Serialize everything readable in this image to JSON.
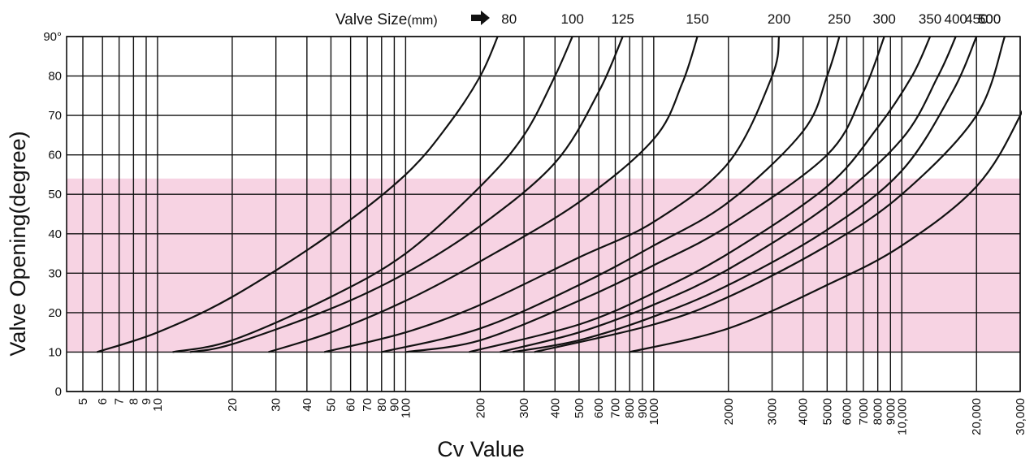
{
  "chart_data": {
    "type": "line",
    "title": "Valve  Size",
    "title_unit": "(mm)",
    "xlabel": "Cv  Value",
    "ylabel": "Valve  Opening(degree)",
    "x_scale": "log",
    "xlim": [
      4.3,
      30000
    ],
    "ylim": [
      0,
      90
    ],
    "y_ticks": [
      "0",
      "10",
      "20",
      "30",
      "40",
      "50",
      "60",
      "70",
      "80",
      "90°"
    ],
    "y_tick_values": [
      0,
      10,
      20,
      30,
      40,
      50,
      60,
      70,
      80,
      90
    ],
    "x_ticks": [
      {
        "v": 5,
        "label": "5"
      },
      {
        "v": 6,
        "label": "6"
      },
      {
        "v": 7,
        "label": "7"
      },
      {
        "v": 8,
        "label": "8"
      },
      {
        "v": 9,
        "label": "9"
      },
      {
        "v": 10,
        "label": "10"
      },
      {
        "v": 20,
        "label": "20"
      },
      {
        "v": 30,
        "label": "30"
      },
      {
        "v": 40,
        "label": "40"
      },
      {
        "v": 50,
        "label": "50"
      },
      {
        "v": 60,
        "label": "60"
      },
      {
        "v": 70,
        "label": "70"
      },
      {
        "v": 80,
        "label": "80"
      },
      {
        "v": 90,
        "label": "90"
      },
      {
        "v": 100,
        "label": "100"
      },
      {
        "v": 200,
        "label": "200"
      },
      {
        "v": 300,
        "label": "300"
      },
      {
        "v": 400,
        "label": "400"
      },
      {
        "v": 500,
        "label": "500"
      },
      {
        "v": 600,
        "label": "600"
      },
      {
        "v": 700,
        "label": "700"
      },
      {
        "v": 800,
        "label": "800"
      },
      {
        "v": 900,
        "label": "900"
      },
      {
        "v": 1000,
        "label": "1000"
      },
      {
        "v": 2000,
        "label": "2000"
      },
      {
        "v": 3000,
        "label": "3000"
      },
      {
        "v": 4000,
        "label": "4000"
      },
      {
        "v": 5000,
        "label": "5000"
      },
      {
        "v": 6000,
        "label": "6000"
      },
      {
        "v": 7000,
        "label": "7000"
      },
      {
        "v": 8000,
        "label": "8000"
      },
      {
        "v": 9000,
        "label": "9000"
      },
      {
        "v": 10000,
        "label": "10,000"
      },
      {
        "v": 20000,
        "label": "20,000"
      },
      {
        "v": 30000,
        "label": "30,000"
      }
    ],
    "highlight_band": {
      "y_from": 10,
      "y_to": 54,
      "color": "#f7d3e3"
    },
    "grid": true,
    "line_color": "#111111",
    "series": [
      {
        "name": "80",
        "points": [
          [
            5.7,
            10
          ],
          [
            10,
            15
          ],
          [
            20,
            24
          ],
          [
            50,
            40
          ],
          [
            100,
            55
          ],
          [
            150,
            68
          ],
          [
            200,
            80
          ],
          [
            235,
            90
          ]
        ]
      },
      {
        "name": "100",
        "points": [
          [
            11.5,
            10
          ],
          [
            20,
            13
          ],
          [
            50,
            24
          ],
          [
            100,
            35
          ],
          [
            200,
            52
          ],
          [
            300,
            65
          ],
          [
            400,
            80
          ],
          [
            470,
            90
          ]
        ]
      },
      {
        "name": "125",
        "points": [
          [
            13.5,
            10
          ],
          [
            20,
            12
          ],
          [
            50,
            21
          ],
          [
            100,
            30
          ],
          [
            200,
            42
          ],
          [
            400,
            58
          ],
          [
            600,
            76
          ],
          [
            750,
            90
          ]
        ]
      },
      {
        "name": "150",
        "points": [
          [
            28,
            10
          ],
          [
            50,
            15
          ],
          [
            100,
            23
          ],
          [
            200,
            33
          ],
          [
            500,
            48
          ],
          [
            1000,
            64
          ],
          [
            1300,
            78
          ],
          [
            1500,
            90
          ]
        ]
      },
      {
        "name": "200",
        "points": [
          [
            47,
            10
          ],
          [
            100,
            15
          ],
          [
            200,
            22
          ],
          [
            500,
            34
          ],
          [
            1000,
            43
          ],
          [
            2000,
            58
          ],
          [
            3000,
            80
          ],
          [
            3200,
            90
          ]
        ]
      },
      {
        "name": "250",
        "points": [
          [
            80,
            10
          ],
          [
            200,
            16
          ],
          [
            500,
            27
          ],
          [
            1000,
            37
          ],
          [
            2000,
            48
          ],
          [
            4000,
            66
          ],
          [
            5000,
            80
          ],
          [
            5600,
            90
          ]
        ]
      },
      {
        "name": "300",
        "points": [
          [
            100,
            10
          ],
          [
            200,
            13
          ],
          [
            500,
            23
          ],
          [
            1000,
            32
          ],
          [
            2000,
            42
          ],
          [
            5000,
            60
          ],
          [
            7000,
            76
          ],
          [
            8500,
            90
          ]
        ]
      },
      {
        "name": "350",
        "points": [
          [
            180,
            10
          ],
          [
            500,
            17
          ],
          [
            1000,
            25
          ],
          [
            2000,
            35
          ],
          [
            5000,
            52
          ],
          [
            8000,
            67
          ],
          [
            11000,
            80
          ],
          [
            13000,
            90
          ]
        ]
      },
      {
        "name": "400",
        "points": [
          [
            240,
            10
          ],
          [
            500,
            15
          ],
          [
            1000,
            22
          ],
          [
            2000,
            31
          ],
          [
            5000,
            47
          ],
          [
            10000,
            64
          ],
          [
            14000,
            80
          ],
          [
            16500,
            90
          ]
        ]
      },
      {
        "name": "450",
        "points": [
          [
            270,
            10
          ],
          [
            500,
            13
          ],
          [
            1000,
            19
          ],
          [
            2000,
            27
          ],
          [
            5000,
            41
          ],
          [
            10000,
            56
          ],
          [
            16000,
            76
          ],
          [
            20000,
            90
          ]
        ]
      },
      {
        "name": "500",
        "points": [
          [
            330,
            10
          ],
          [
            1000,
            17
          ],
          [
            2000,
            24
          ],
          [
            5000,
            37
          ],
          [
            10000,
            50
          ],
          [
            20000,
            70
          ],
          [
            26000,
            90
          ]
        ]
      },
      {
        "name": "600",
        "points": [
          [
            800,
            10
          ],
          [
            2000,
            16
          ],
          [
            5000,
            27
          ],
          [
            10000,
            37
          ],
          [
            20000,
            52
          ],
          [
            30000,
            70
          ],
          [
            40000,
            90
          ]
        ]
      }
    ],
    "size_labels": [
      "80",
      "100",
      "125",
      "150",
      "200",
      "250",
      "300",
      "350",
      "400",
      "450",
      "500",
      "600"
    ]
  }
}
